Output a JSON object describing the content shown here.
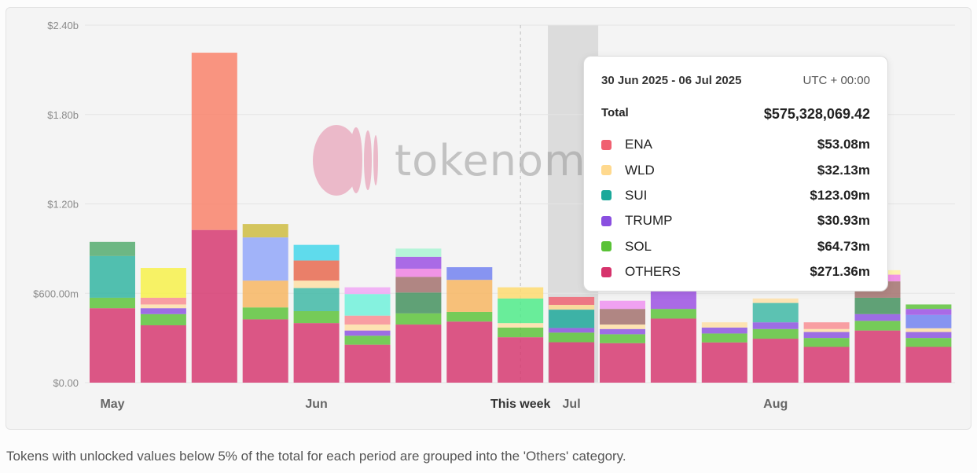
{
  "chart_data": {
    "type": "bar",
    "stacked": true,
    "y_ticks": [
      "$0.00",
      "$600.00m",
      "$1.20b",
      "$1.80b",
      "$2.40b"
    ],
    "ylim": [
      0,
      2400
    ],
    "x_labels": [
      {
        "text": "May",
        "bar_index": 0
      },
      {
        "text": "Jun",
        "bar_index": 4
      },
      {
        "text": "This week",
        "bar_index": 8
      },
      {
        "text": "Jul",
        "bar_index": 9
      },
      {
        "text": "Aug",
        "bar_index": 13
      }
    ],
    "current_week_index": 8,
    "highlight_index": 9,
    "bars": [
      [
        [
          500,
          "#d6336c"
        ],
        [
          70,
          "#59c236"
        ],
        [
          280,
          "#2db3a0"
        ],
        [
          95,
          "#4fa96a"
        ]
      ],
      [
        [
          385,
          "#d6336c"
        ],
        [
          75,
          "#59c236"
        ],
        [
          40,
          "#8a4fe0"
        ],
        [
          25,
          "#ffe0a8"
        ],
        [
          45,
          "#f98b90"
        ],
        [
          200,
          "#f8f146"
        ]
      ],
      [
        [
          1025,
          "#d6336c"
        ],
        [
          1190,
          "#fa7f66"
        ]
      ],
      [
        [
          425,
          "#d6336c"
        ],
        [
          80,
          "#59c236"
        ],
        [
          180,
          "#f8b55e"
        ],
        [
          290,
          "#8fa5fa"
        ],
        [
          90,
          "#cdbb3c"
        ]
      ],
      [
        [
          400,
          "#d6336c"
        ],
        [
          80,
          "#59c236"
        ],
        [
          155,
          "#3bb7a3"
        ],
        [
          50,
          "#ffdfa4"
        ],
        [
          135,
          "#e8654a"
        ],
        [
          105,
          "#3ed6ea"
        ]
      ],
      [
        [
          255,
          "#d6336c"
        ],
        [
          60,
          "#59c236"
        ],
        [
          35,
          "#8a4fe0"
        ],
        [
          40,
          "#ffdfa4"
        ],
        [
          60,
          "#f98b90"
        ],
        [
          145,
          "#6cf2da"
        ],
        [
          45,
          "#f0a5f5"
        ]
      ],
      [
        [
          390,
          "#d6336c"
        ],
        [
          75,
          "#59c236"
        ],
        [
          140,
          "#3f8f5a"
        ],
        [
          105,
          "#a16e6a"
        ],
        [
          55,
          "#ef7fe3"
        ],
        [
          80,
          "#9a4ce3"
        ],
        [
          55,
          "#a7f4d2"
        ]
      ],
      [
        [
          410,
          "#d6336c"
        ],
        [
          65,
          "#59c236"
        ],
        [
          215,
          "#f8b55e"
        ],
        [
          85,
          "#6f7ff0"
        ]
      ],
      [
        [
          305,
          "#d6336c"
        ],
        [
          65,
          "#59c236"
        ],
        [
          30,
          "#ffdfa4"
        ],
        [
          165,
          "#4bec86"
        ],
        [
          75,
          "#ffdb6b"
        ]
      ],
      [
        [
          271.36,
          "#d6336c"
        ],
        [
          64.73,
          "#59c236"
        ],
        [
          30.93,
          "#8a4fe0"
        ],
        [
          123.09,
          "#1aa89a"
        ],
        [
          32.13,
          "#ffd98e"
        ],
        [
          53.08,
          "#f06070"
        ]
      ],
      [
        [
          265,
          "#d6336c"
        ],
        [
          60,
          "#59c236"
        ],
        [
          35,
          "#8a4fe0"
        ],
        [
          30,
          "#ffdfa4"
        ],
        [
          105,
          "#a16e6a"
        ],
        [
          55,
          "#ef8ff0"
        ]
      ],
      [
        [
          430,
          "#d6336c"
        ],
        [
          65,
          "#59c236"
        ],
        [
          130,
          "#9a4ce3"
        ]
      ],
      [
        [
          270,
          "#d6336c"
        ],
        [
          60,
          "#59c236"
        ],
        [
          40,
          "#8a4fe0"
        ],
        [
          35,
          "#ffdfa4"
        ]
      ],
      [
        [
          295,
          "#d6336c"
        ],
        [
          65,
          "#59c236"
        ],
        [
          45,
          "#8a4fe0"
        ],
        [
          130,
          "#3bb7a3"
        ],
        [
          30,
          "#ffdfa4"
        ]
      ],
      [
        [
          240,
          "#d6336c"
        ],
        [
          60,
          "#59c236"
        ],
        [
          40,
          "#8a4fe0"
        ],
        [
          20,
          "#ffdfa4"
        ],
        [
          45,
          "#f98b90"
        ]
      ],
      [
        [
          350,
          "#d6336c"
        ],
        [
          65,
          "#59c236"
        ],
        [
          45,
          "#8a4fe0"
        ],
        [
          110,
          "#3f8f5a"
        ],
        [
          110,
          "#a16e6a"
        ],
        [
          45,
          "#ef7fe3"
        ],
        [
          30,
          "#fff0a0"
        ]
      ],
      [
        [
          240,
          "#d6336c"
        ],
        [
          60,
          "#59c236"
        ],
        [
          40,
          "#8a4fe0"
        ],
        [
          25,
          "#ffdfa4"
        ],
        [
          90,
          "#6f7ff0"
        ],
        [
          40,
          "#9a4ce3"
        ],
        [
          30,
          "#59c236"
        ]
      ]
    ]
  },
  "watermark": {
    "text": "tokenomist"
  },
  "tooltip": {
    "range": "30 Jun 2025 - 06 Jul 2025",
    "timezone": "UTC + 00:00",
    "total_label": "Total",
    "total_value": "$575,328,069.42",
    "rows": [
      {
        "name": "ENA",
        "value": "$53.08m",
        "color": "#f06070"
      },
      {
        "name": "WLD",
        "value": "$32.13m",
        "color": "#ffd98e"
      },
      {
        "name": "SUI",
        "value": "$123.09m",
        "color": "#1aa89a"
      },
      {
        "name": "TRUMP",
        "value": "$30.93m",
        "color": "#8a4fe0"
      },
      {
        "name": "SOL",
        "value": "$64.73m",
        "color": "#59c236"
      },
      {
        "name": "OTHERS",
        "value": "$271.36m",
        "color": "#d6336c"
      }
    ]
  },
  "footnote": "Tokens with unlocked values below 5% of the total for each period are grouped into the 'Others' category."
}
